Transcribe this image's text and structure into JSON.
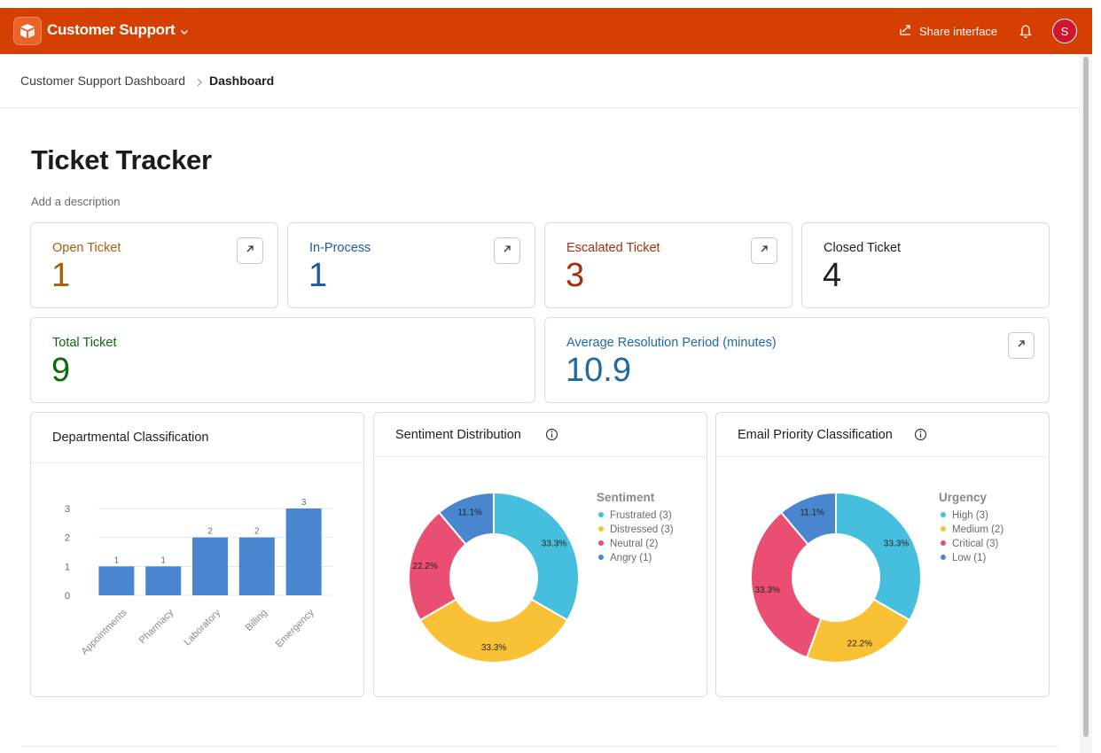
{
  "app": {
    "title": "Customer Support",
    "share_label": "Share interface",
    "avatar_initial": "S"
  },
  "breadcrumb": {
    "parent": "Customer Support Dashboard",
    "current": "Dashboard"
  },
  "page": {
    "title": "Ticket Tracker",
    "description": "Add a description"
  },
  "metrics": [
    {
      "label": "Open Ticket",
      "value": "1",
      "color": "#a8610a"
    },
    {
      "label": "In-Process",
      "value": "1",
      "color": "#1c5aa6"
    },
    {
      "label": "Escalated Ticket",
      "value": "3",
      "color": "#a3300f"
    },
    {
      "label": "Closed Ticket",
      "value": "4",
      "color": "#1f1f1f"
    },
    {
      "label": "Total Ticket",
      "value": "9",
      "color": "#0b6a0b"
    },
    {
      "label": "Average Resolution Period (minutes)",
      "value": "10.9",
      "color": "#1c6aa8"
    }
  ],
  "panels": {
    "departmental": {
      "title": "Departmental Classification"
    },
    "sentiment": {
      "title": "Sentiment Distribution"
    },
    "priority": {
      "title": "Email Priority Classification"
    }
  },
  "chart_data": [
    {
      "type": "bar",
      "title": "Departmental Classification",
      "categories": [
        "Appointments",
        "Pharmacy",
        "Laboratory",
        "Billing",
        "Emergency"
      ],
      "values": [
        1,
        1,
        2,
        2,
        3
      ],
      "yticks": [
        0,
        1,
        2,
        3
      ],
      "ylim": [
        0,
        3
      ],
      "grid": true,
      "color": "#4a86d0"
    },
    {
      "type": "pie",
      "donut": true,
      "title": "Sentiment Distribution",
      "legend_title": "Sentiment",
      "legend": "right",
      "slices": [
        {
          "name": "Frustrated",
          "count": 3,
          "percent": "33.3%",
          "color": "#46bfde"
        },
        {
          "name": "Distressed",
          "count": 3,
          "percent": "33.3%",
          "color": "#f8c234"
        },
        {
          "name": "Neutral",
          "count": 2,
          "percent": "22.2%",
          "color": "#ea4f73"
        },
        {
          "name": "Angry",
          "count": 1,
          "percent": "11.1%",
          "color": "#4a86d0"
        }
      ]
    },
    {
      "type": "pie",
      "donut": true,
      "title": "Email Priority Classification",
      "legend_title": "Urgency",
      "legend": "right",
      "slices": [
        {
          "name": "High",
          "count": 3,
          "percent": "33.3%",
          "color": "#46bfde"
        },
        {
          "name": "Medium",
          "count": 2,
          "percent": "22.2%",
          "color": "#f8c234"
        },
        {
          "name": "Critical",
          "count": 3,
          "percent": "33.3%",
          "color": "#ea4f73"
        },
        {
          "name": "Low",
          "count": 1,
          "percent": "11.1%",
          "color": "#4a86d0"
        }
      ]
    }
  ]
}
